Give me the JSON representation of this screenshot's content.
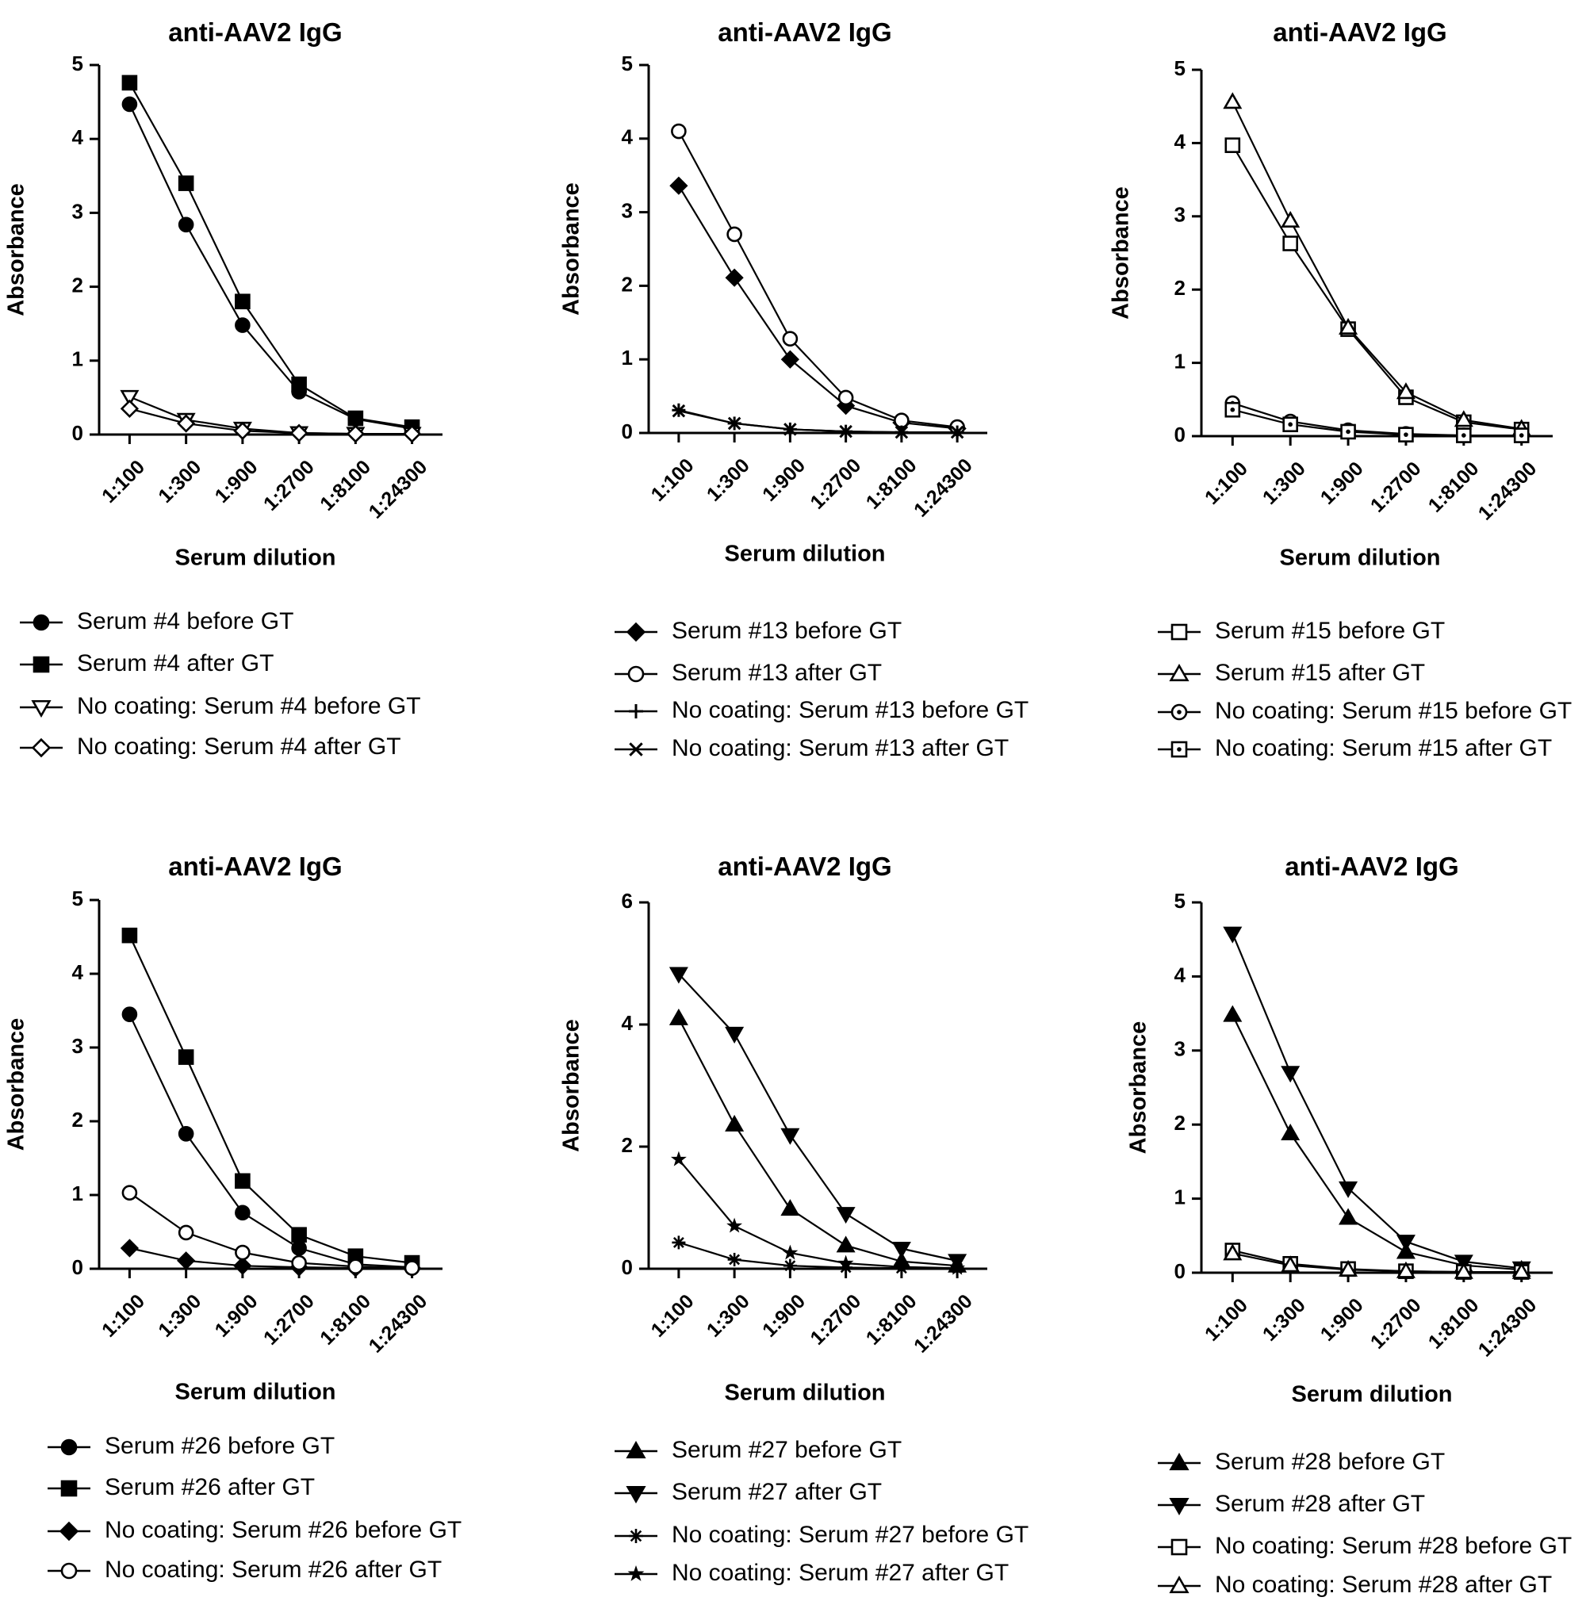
{
  "chart_data": [
    {
      "type": "line",
      "title": "anti-AAV2 IgG",
      "xlabel": "Serum dilution",
      "ylabel": "Absorbance",
      "categories": [
        "1:100",
        "1:300",
        "1:900",
        "1:2700",
        "1:8100",
        "1:24300"
      ],
      "ylim": [
        0,
        5
      ],
      "yticks": [
        0,
        1,
        2,
        3,
        4,
        5
      ],
      "series": [
        {
          "name": "Serum #4 before GT",
          "marker": "circle-filled",
          "values": [
            4.47,
            2.84,
            1.48,
            0.58,
            0.21,
            0.08
          ]
        },
        {
          "name": "Serum #4 after GT",
          "marker": "square-filled",
          "values": [
            4.76,
            3.4,
            1.8,
            0.68,
            0.22,
            0.1
          ]
        },
        {
          "name": "No coating: Serum #4 before GT",
          "marker": "triangle-down-open",
          "values": [
            0.51,
            0.2,
            0.08,
            0.02,
            0.01,
            0.01
          ]
        },
        {
          "name": "No coating: Serum #4 after GT",
          "marker": "diamond-open",
          "values": [
            0.35,
            0.15,
            0.05,
            0.02,
            0.01,
            0.01
          ]
        }
      ]
    },
    {
      "type": "line",
      "title": "anti-AAV2 IgG",
      "xlabel": "Serum dilution",
      "ylabel": "Absorbance",
      "categories": [
        "1:100",
        "1:300",
        "1:900",
        "1:2700",
        "1:8100",
        "1:24300"
      ],
      "ylim": [
        0,
        5
      ],
      "yticks": [
        0,
        1,
        2,
        3,
        4,
        5
      ],
      "series": [
        {
          "name": "Serum #13 before GT",
          "marker": "diamond-filled",
          "values": [
            3.36,
            2.11,
            1.0,
            0.37,
            0.14,
            0.06
          ]
        },
        {
          "name": "Serum #13 after GT",
          "marker": "circle-open",
          "values": [
            4.1,
            2.7,
            1.28,
            0.48,
            0.17,
            0.08
          ]
        },
        {
          "name": "No coating: Serum #13 before GT",
          "marker": "plus",
          "values": [
            0.31,
            0.13,
            0.05,
            0.02,
            0.01,
            0.01
          ]
        },
        {
          "name": "No coating: Serum #13 after GT",
          "marker": "cross",
          "values": [
            0.3,
            0.13,
            0.05,
            0.02,
            0.01,
            0.01
          ]
        }
      ]
    },
    {
      "type": "line",
      "title": "anti-AAV2 IgG",
      "xlabel": "Serum dilution",
      "ylabel": "Absorbance",
      "categories": [
        "1:100",
        "1:300",
        "1:900",
        "1:2700",
        "1:8100",
        "1:24300"
      ],
      "ylim": [
        0,
        5
      ],
      "yticks": [
        0,
        1,
        2,
        3,
        4,
        5
      ],
      "series": [
        {
          "name": "Serum #15 before GT",
          "marker": "square-open",
          "values": [
            3.97,
            2.63,
            1.46,
            0.53,
            0.19,
            0.09
          ]
        },
        {
          "name": "Serum #15 after GT",
          "marker": "triangle-up-open",
          "values": [
            4.56,
            2.94,
            1.48,
            0.6,
            0.22,
            0.1
          ]
        },
        {
          "name": "No coating: Serum #15 before GT",
          "marker": "circle-dot",
          "values": [
            0.45,
            0.2,
            0.08,
            0.03,
            0.01,
            0.01
          ]
        },
        {
          "name": "No coating: Serum #15 after GT",
          "marker": "square-dot",
          "values": [
            0.36,
            0.16,
            0.06,
            0.02,
            0.01,
            0.01
          ]
        }
      ]
    },
    {
      "type": "line",
      "title": "anti-AAV2 IgG",
      "xlabel": "Serum dilution",
      "ylabel": "Absorbance",
      "categories": [
        "1:100",
        "1:300",
        "1:900",
        "1:2700",
        "1:8100",
        "1:24300"
      ],
      "ylim": [
        0,
        5
      ],
      "yticks": [
        0,
        1,
        2,
        3,
        4,
        5
      ],
      "series": [
        {
          "name": "Serum #26 before GT",
          "marker": "circle-filled",
          "values": [
            3.45,
            1.83,
            0.76,
            0.28,
            0.06,
            0.02
          ]
        },
        {
          "name": "Serum #26 after GT",
          "marker": "square-filled",
          "values": [
            4.52,
            2.87,
            1.19,
            0.46,
            0.17,
            0.08
          ]
        },
        {
          "name": "No coating: Serum #26 before GT",
          "marker": "diamond-filled",
          "values": [
            0.28,
            0.11,
            0.04,
            0.02,
            0.01,
            0.01
          ]
        },
        {
          "name": "No coating: Serum #26 after GT",
          "marker": "circle-open",
          "values": [
            1.03,
            0.49,
            0.22,
            0.08,
            0.03,
            0.01
          ]
        }
      ]
    },
    {
      "type": "line",
      "title": "anti-AAV2 IgG",
      "xlabel": "Serum dilution",
      "ylabel": "Absorbance",
      "categories": [
        "1:100",
        "1:300",
        "1:900",
        "1:2700",
        "1:8100",
        "1:24300"
      ],
      "ylim": [
        0,
        6
      ],
      "yticks": [
        0,
        2,
        4,
        6
      ],
      "series": [
        {
          "name": "Serum #27 before GT",
          "marker": "triangle-up-filled",
          "values": [
            4.1,
            2.36,
            0.98,
            0.38,
            0.12,
            0.05
          ]
        },
        {
          "name": "Serum #27 after GT",
          "marker": "triangle-down-filled",
          "values": [
            4.83,
            3.85,
            2.19,
            0.9,
            0.33,
            0.13
          ]
        },
        {
          "name": "No coating: Serum #27 before GT",
          "marker": "asterisk",
          "values": [
            0.43,
            0.15,
            0.05,
            0.02,
            0.01,
            0.01
          ]
        },
        {
          "name": "No coating: Serum #27 after GT",
          "marker": "star",
          "values": [
            1.79,
            0.7,
            0.26,
            0.09,
            0.03,
            0.01
          ]
        }
      ]
    },
    {
      "type": "line",
      "title": "anti-AAV2 IgG",
      "xlabel": "Serum dilution",
      "ylabel": "Absorbance",
      "categories": [
        "1:100",
        "1:300",
        "1:900",
        "1:2700",
        "1:8100",
        "1:24300"
      ],
      "ylim": [
        0,
        5
      ],
      "yticks": [
        0,
        1,
        2,
        3,
        4,
        5
      ],
      "series": [
        {
          "name": "Serum #28 before GT",
          "marker": "triangle-up-filled",
          "values": [
            3.48,
            1.88,
            0.74,
            0.28,
            0.1,
            0.04
          ]
        },
        {
          "name": "Serum #28 after GT",
          "marker": "triangle-down-filled",
          "values": [
            4.58,
            2.7,
            1.14,
            0.42,
            0.15,
            0.06
          ]
        },
        {
          "name": "No coating: Serum #28 before GT",
          "marker": "square-open",
          "values": [
            0.3,
            0.12,
            0.05,
            0.02,
            0.01,
            0.01
          ]
        },
        {
          "name": "No coating: Serum #28 after GT",
          "marker": "triangle-up-open",
          "values": [
            0.26,
            0.1,
            0.04,
            0.02,
            0.01,
            0.01
          ]
        }
      ]
    }
  ]
}
